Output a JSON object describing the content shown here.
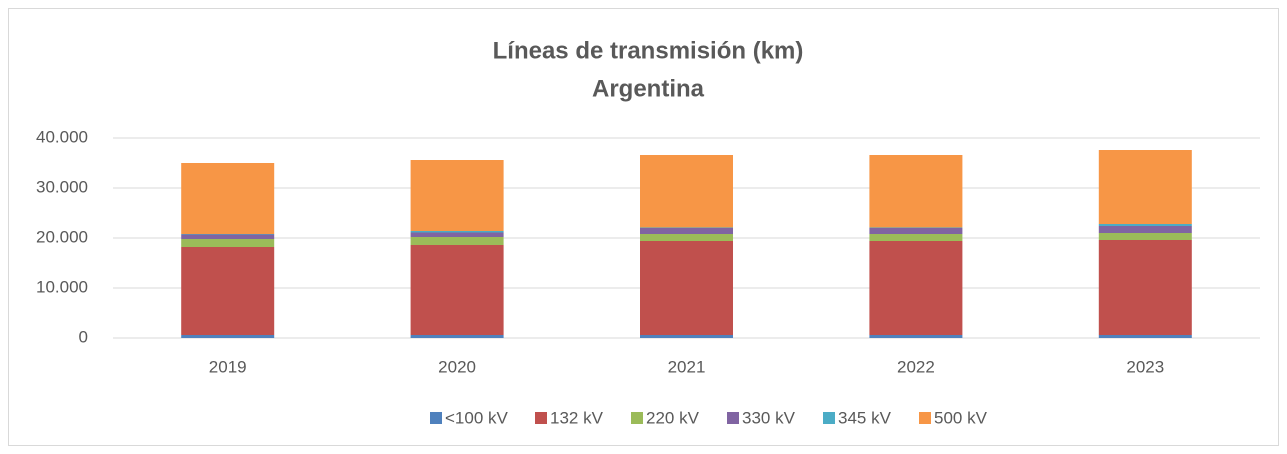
{
  "chart_data": {
    "type": "stacked_bar",
    "title": "Líneas de transmisión (km)",
    "subtitle": "Argentina",
    "categories": [
      "2019",
      "2020",
      "2021",
      "2022",
      "2023"
    ],
    "series": [
      {
        "name": "<100 kV",
        "color": "#4f81bd",
        "values": [
          600,
          600,
          600,
          600,
          600
        ]
      },
      {
        "name": "132 kV",
        "color": "#c0504d",
        "values": [
          17600,
          18000,
          18800,
          18800,
          19000
        ]
      },
      {
        "name": "220 kV",
        "color": "#9bbb59",
        "values": [
          1600,
          1600,
          1400,
          1400,
          1400
        ]
      },
      {
        "name": "330 kV",
        "color": "#8064a2",
        "values": [
          900,
          900,
          1200,
          1200,
          1400
        ]
      },
      {
        "name": "345 kV",
        "color": "#4bacc6",
        "values": [
          100,
          300,
          100,
          100,
          400
        ]
      },
      {
        "name": "500 kV",
        "color": "#f79646",
        "values": [
          14200,
          14200,
          14500,
          14500,
          14800
        ]
      }
    ],
    "ylim": [
      0,
      40000
    ],
    "yticks": [
      0,
      {
        "value": 10000,
        "label": "10.000"
      },
      {
        "value": 20000,
        "label": "20.000"
      },
      {
        "value": 30000,
        "label": "30.000"
      },
      {
        "value": 40000,
        "label": "40.000"
      }
    ],
    "grid": true,
    "legend": "bottom"
  }
}
